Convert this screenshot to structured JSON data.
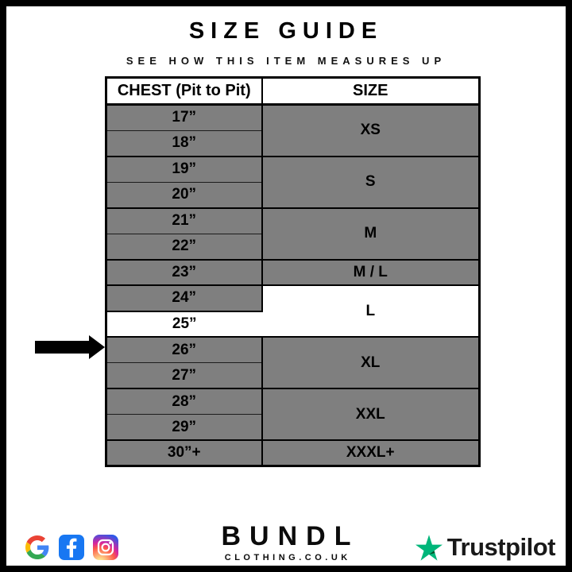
{
  "header": {
    "title": "SIZE GUIDE",
    "subtitle": "SEE HOW THIS ITEM MEASURES UP"
  },
  "table": {
    "columns": [
      "CHEST (Pit to Pit)",
      "SIZE"
    ],
    "groups": [
      {
        "size": "XS",
        "chest": [
          "17”",
          "18”"
        ],
        "highlighted": false
      },
      {
        "size": "S",
        "chest": [
          "19”",
          "20”"
        ],
        "highlighted": false
      },
      {
        "size": "M",
        "chest": [
          "21”",
          "22”"
        ],
        "highlighted": false
      },
      {
        "size": "M / L",
        "chest": [
          "23”"
        ],
        "highlighted": false
      },
      {
        "size": "L",
        "chest": [
          "24”",
          "25”"
        ],
        "highlighted": true,
        "highlighted_chest": "25”"
      },
      {
        "size": "XL",
        "chest": [
          "26”",
          "27”"
        ],
        "highlighted": false
      },
      {
        "size": "XXL",
        "chest": [
          "28”",
          "29”"
        ],
        "highlighted": false
      },
      {
        "size": "XXXL+",
        "chest": [
          "30”+"
        ],
        "highlighted": false
      }
    ],
    "colors": {
      "row_gray": "#7f7f7f",
      "highlight": "#ffffff",
      "border": "#000000"
    }
  },
  "indicator": {
    "points_to": "25”"
  },
  "footer": {
    "brand": {
      "name": "BUNDL",
      "domain": "CLOTHING.CO.UK"
    },
    "social_icons": [
      "google-icon",
      "facebook-icon",
      "instagram-icon"
    ],
    "trustpilot": {
      "label": "Trustpilot",
      "star_color": "#00B67A",
      "star_shadow": "#005128"
    },
    "icon_colors": {
      "facebook_blue": "#1877F2",
      "google_red": "#EA4335",
      "google_yellow": "#FBBC05",
      "google_green": "#34A853",
      "google_blue": "#4285F4"
    }
  },
  "chart_data": {
    "type": "table",
    "title": "SIZE GUIDE",
    "subtitle": "SEE HOW THIS ITEM MEASURES UP",
    "columns": [
      "CHEST (Pit to Pit)",
      "SIZE"
    ],
    "rows": [
      [
        "17”",
        "XS"
      ],
      [
        "18”",
        "XS"
      ],
      [
        "19”",
        "S"
      ],
      [
        "20”",
        "S"
      ],
      [
        "21”",
        "M"
      ],
      [
        "22”",
        "M"
      ],
      [
        "23”",
        "M / L"
      ],
      [
        "24”",
        "L"
      ],
      [
        "25”",
        "L"
      ],
      [
        "26”",
        "XL"
      ],
      [
        "27”",
        "XL"
      ],
      [
        "28”",
        "XXL"
      ],
      [
        "29”",
        "XXL"
      ],
      [
        "30”+",
        "XXXL+"
      ]
    ],
    "highlighted_row": [
      "25”",
      "L"
    ],
    "annotation": "black arrow pointing at the 25” / L row"
  }
}
